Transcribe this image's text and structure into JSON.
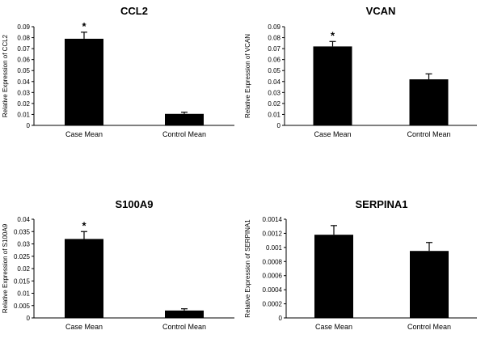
{
  "chart_data": [
    {
      "type": "bar",
      "title": "CCL2",
      "ylabel": "Relative Expression of CCL2",
      "categories": [
        "Case Mean",
        "Control Mean"
      ],
      "values": [
        0.079,
        0.0105
      ],
      "errors": [
        0.006,
        0.0015
      ],
      "significance": [
        "*",
        ""
      ],
      "ylim": [
        0,
        0.09
      ],
      "yticks": [
        "0",
        "0.01",
        "0.02",
        "0.03",
        "0.04",
        "0.05",
        "0.06",
        "0.07",
        "0.08",
        "0.09"
      ],
      "bar_color": "#000000",
      "grid": false
    },
    {
      "type": "bar",
      "title": "VCAN",
      "ylabel": "Relative Expression of VCAN",
      "categories": [
        "Case Mean",
        "Control Mean"
      ],
      "values": [
        0.072,
        0.042
      ],
      "errors": [
        0.0045,
        0.005
      ],
      "significance": [
        "*",
        ""
      ],
      "ylim": [
        0,
        0.09
      ],
      "yticks": [
        "0",
        "0.01",
        "0.02",
        "0.03",
        "0.04",
        "0.05",
        "0.06",
        "0.07",
        "0.08",
        "0.09"
      ],
      "bar_color": "#000000",
      "grid": false
    },
    {
      "type": "bar",
      "title": "S100A9",
      "ylabel": "Relative Expression of S100A9",
      "categories": [
        "Case Mean",
        "Control Mean"
      ],
      "values": [
        0.032,
        0.003
      ],
      "errors": [
        0.003,
        0.0007
      ],
      "significance": [
        "*",
        ""
      ],
      "ylim": [
        0,
        0.04
      ],
      "yticks": [
        "0",
        "0.005",
        "0.01",
        "0.015",
        "0.02",
        "0.025",
        "0.03",
        "0.035",
        "0.04"
      ],
      "bar_color": "#000000",
      "grid": false
    },
    {
      "type": "bar",
      "title": "SERPINA1",
      "ylabel": "Relative Expression of SERPINA1",
      "categories": [
        "Case Mean",
        "Control Mean"
      ],
      "values": [
        0.00118,
        0.00095
      ],
      "errors": [
        0.00013,
        0.00012
      ],
      "significance": [
        "",
        ""
      ],
      "ylim": [
        0,
        0.0014
      ],
      "yticks": [
        "0",
        "0.0002",
        "0.0004",
        "0.0006",
        "0.0008",
        "0.001",
        "0.0012",
        "0.0014"
      ],
      "bar_color": "#000000",
      "grid": false
    }
  ]
}
